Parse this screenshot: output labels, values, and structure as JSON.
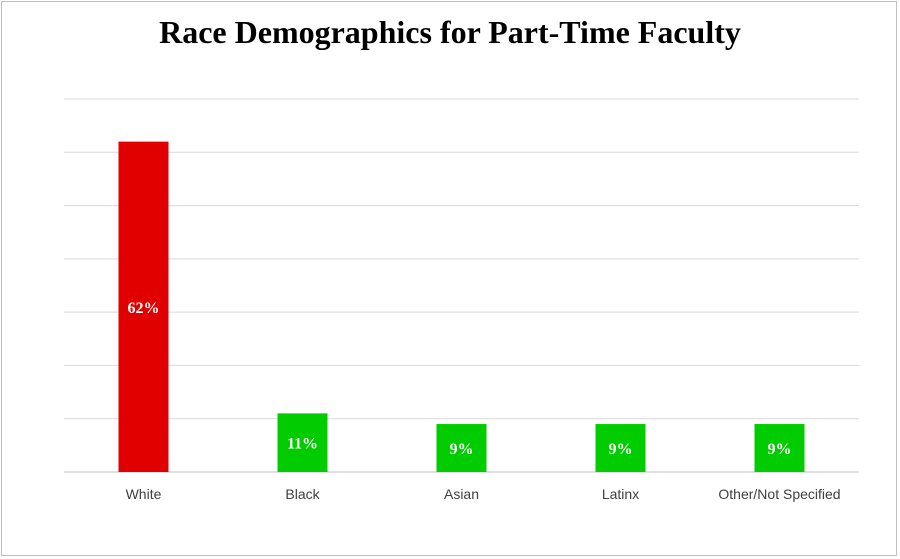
{
  "chart_data": {
    "type": "bar",
    "title": "Race Demographics for Part-Time Faculty",
    "categories": [
      "White",
      "Black",
      "Asian",
      "Latinx",
      "Other/Not Specified"
    ],
    "values": [
      62,
      11,
      9,
      9,
      9
    ],
    "value_labels": [
      "62%",
      "11%",
      "9%",
      "9%",
      "9%"
    ],
    "bar_colors": [
      "#e00000",
      "#00cc00",
      "#00cc00",
      "#00cc00",
      "#00cc00"
    ],
    "ylim": [
      0,
      70
    ],
    "grid": true,
    "xlabel": "",
    "ylabel": ""
  }
}
